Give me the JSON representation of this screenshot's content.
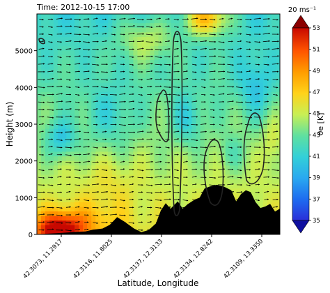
{
  "chart_data": {
    "type": "heatmap",
    "title": "Time: 2012-10-15 17:00",
    "xlabel": "Latitude, Longitude",
    "ylabel": "Height (m)",
    "ylim": [
      0,
      6000
    ],
    "yticks": [
      0,
      1000,
      2000,
      3000,
      4000,
      5000
    ],
    "xtick_labels": [
      "42.3073, 11.2917",
      "42.3116, 11.8025",
      "42.3137, 12.3133",
      "42.3134, 12.8242",
      "42.3109, 13.3350"
    ],
    "colorbar": {
      "label": "θe [K]",
      "ticks": [
        35,
        37,
        39,
        41,
        43,
        45,
        47,
        49,
        51,
        53
      ],
      "range": [
        35,
        53
      ],
      "extend": "both"
    },
    "quiver_key": "20 ms⁻¹",
    "terrain_profile_m": [
      [
        0.0,
        0
      ],
      [
        0.05,
        20
      ],
      [
        0.1,
        40
      ],
      [
        0.15,
        60
      ],
      [
        0.2,
        80
      ],
      [
        0.23,
        130
      ],
      [
        0.27,
        160
      ],
      [
        0.3,
        260
      ],
      [
        0.33,
        470
      ],
      [
        0.36,
        350
      ],
      [
        0.4,
        160
      ],
      [
        0.43,
        60
      ],
      [
        0.46,
        120
      ],
      [
        0.49,
        300
      ],
      [
        0.51,
        650
      ],
      [
        0.53,
        850
      ],
      [
        0.55,
        700
      ],
      [
        0.58,
        900
      ],
      [
        0.6,
        700
      ],
      [
        0.62,
        820
      ],
      [
        0.65,
        950
      ],
      [
        0.67,
        1000
      ],
      [
        0.69,
        1250
      ],
      [
        0.71,
        1300
      ],
      [
        0.74,
        1350
      ],
      [
        0.77,
        1300
      ],
      [
        0.8,
        1200
      ],
      [
        0.82,
        900
      ],
      [
        0.84,
        1100
      ],
      [
        0.86,
        1200
      ],
      [
        0.88,
        1150
      ],
      [
        0.9,
        880
      ],
      [
        0.92,
        720
      ],
      [
        0.94,
        760
      ],
      [
        0.96,
        830
      ],
      [
        0.98,
        620
      ],
      [
        1.0,
        700
      ]
    ],
    "contour_regions": [
      "narrow closed contour near x≈0.57, 900–5500 m",
      "closed contour near x≈0.51, 2500–3900 m",
      "closed contour near x≈0.71, 1000–2600 m",
      "closed contour near x≈0.86, 1400–3300 m"
    ]
  }
}
